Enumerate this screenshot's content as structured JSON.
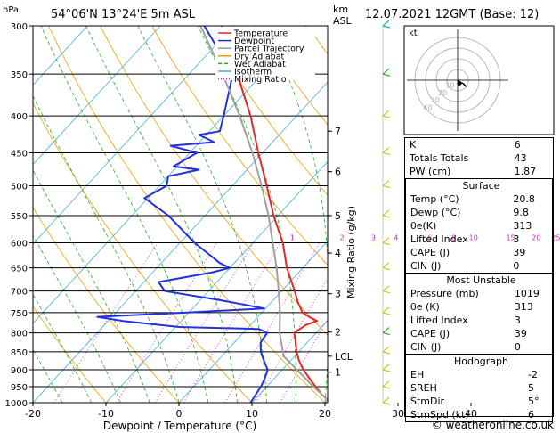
{
  "header": {
    "pressure_unit": "hPa",
    "location": "54°06'N  13°24'E  5m  ASL",
    "height_unit_km": "km",
    "height_unit_asl": "ASL",
    "datetime": "12.07.2021  12GMT  (Base: 12)"
  },
  "legend": [
    {
      "label": "Temperature",
      "color": "#e8262a"
    },
    {
      "label": "Dewpoint",
      "color": "#2230e0"
    },
    {
      "label": "Parcel Trajectory",
      "color": "#a0a0a0"
    },
    {
      "label": "Dry Adiabat",
      "color": "#f0a000"
    },
    {
      "label": "Wet Adiabat",
      "color": "#20b020"
    },
    {
      "label": "Isotherm",
      "color": "#40b0e0"
    },
    {
      "label": "Mixing Ratio",
      "color": "#e020c0"
    }
  ],
  "chart_data": {
    "type": "line",
    "title": "",
    "xlabel": "Dewpoint / Temperature (°C)",
    "ylabel": "",
    "x_ticks": [
      -30,
      -20,
      -10,
      0,
      10,
      20,
      30,
      40
    ],
    "xlim": [
      -35,
      40
    ],
    "pressure_levels": [
      300,
      350,
      400,
      450,
      500,
      550,
      600,
      650,
      700,
      750,
      800,
      850,
      900,
      950,
      1000
    ],
    "ylim_hpa": [
      1000,
      300
    ],
    "y_scale": "log",
    "km_ticks": [
      {
        "km": "7",
        "p": 420
      },
      {
        "km": "6",
        "p": 478
      },
      {
        "km": "5",
        "p": 550
      },
      {
        "km": "4",
        "p": 620
      },
      {
        "km": "3",
        "p": 706
      },
      {
        "km": "2",
        "p": 798
      },
      {
        "km": "LCL",
        "p": 862
      },
      {
        "km": "1",
        "p": 907
      }
    ],
    "mixing_ratio_labels": [
      {
        "label": "1",
        "t600": -4.6
      },
      {
        "label": "2",
        "t600": 2.2
      },
      {
        "label": "3",
        "t600": 6.5
      },
      {
        "label": "4",
        "t600": 9.6
      },
      {
        "label": "6",
        "t600": 14.2
      },
      {
        "label": "8",
        "t600": 17.5
      },
      {
        "label": "10",
        "t600": 20.2
      },
      {
        "label": "15",
        "t600": 25.3
      },
      {
        "label": "20",
        "t600": 28.8
      },
      {
        "label": "25",
        "t600": 31.5
      }
    ],
    "mixing_ratio_axis_label": "Mixing Ratio (g/kg)",
    "series": [
      {
        "name": "Temperature",
        "color": "#e8262a",
        "points": [
          [
            1000,
            20.8
          ],
          [
            975,
            18.6
          ],
          [
            950,
            16.7
          ],
          [
            925,
            14.8
          ],
          [
            900,
            12.9
          ],
          [
            875,
            11.2
          ],
          [
            850,
            9.7
          ],
          [
            825,
            8.4
          ],
          [
            800,
            7.0
          ],
          [
            780,
            7.6
          ],
          [
            770,
            8.6
          ],
          [
            760,
            7.0
          ],
          [
            750,
            5.6
          ],
          [
            725,
            3.6
          ],
          [
            700,
            1.8
          ],
          [
            650,
            -2.2
          ],
          [
            600,
            -5.9
          ],
          [
            550,
            -10.6
          ],
          [
            500,
            -15.3
          ],
          [
            450,
            -20.6
          ],
          [
            400,
            -26.3
          ],
          [
            350,
            -33.4
          ],
          [
            300,
            -41.6
          ]
        ]
      },
      {
        "name": "Dewpoint",
        "color": "#2230e0",
        "points": [
          [
            1000,
            9.8
          ],
          [
            950,
            9.2
          ],
          [
            925,
            8.7
          ],
          [
            900,
            8.0
          ],
          [
            875,
            6.4
          ],
          [
            850,
            4.8
          ],
          [
            825,
            3.6
          ],
          [
            800,
            3.3
          ],
          [
            790,
            1.6
          ],
          [
            785,
            -9.5
          ],
          [
            770,
            -18.0
          ],
          [
            760,
            -22.0
          ],
          [
            750,
            -10.5
          ],
          [
            740,
            -0.2
          ],
          [
            720,
            -7.5
          ],
          [
            700,
            -16.0
          ],
          [
            680,
            -18.0
          ],
          [
            660,
            -12.0
          ],
          [
            650,
            -10.0
          ],
          [
            640,
            -12.0
          ],
          [
            600,
            -18.0
          ],
          [
            550,
            -25.0
          ],
          [
            520,
            -30.5
          ],
          [
            500,
            -29.0
          ],
          [
            485,
            -30.0
          ],
          [
            475,
            -26.6
          ],
          [
            470,
            -30.5
          ],
          [
            450,
            -29.0
          ],
          [
            440,
            -33.5
          ],
          [
            435,
            -28.0
          ],
          [
            425,
            -31.0
          ],
          [
            420,
            -28.6
          ],
          [
            400,
            -30.0
          ],
          [
            350,
            -34.0
          ],
          [
            300,
            -44.0
          ]
        ]
      },
      {
        "name": "Parcel Trajectory",
        "color": "#a0a0a0",
        "points": [
          [
            1000,
            20.8
          ],
          [
            950,
            16.4
          ],
          [
            900,
            12.0
          ],
          [
            862,
            8.5
          ],
          [
            800,
            5.0
          ],
          [
            750,
            2.5
          ],
          [
            700,
            -0.4
          ],
          [
            650,
            -3.6
          ],
          [
            600,
            -7.3
          ],
          [
            550,
            -11.3
          ],
          [
            500,
            -16.0
          ],
          [
            450,
            -21.4
          ],
          [
            400,
            -27.8
          ],
          [
            350,
            -35.4
          ],
          [
            300,
            -44.5
          ]
        ]
      }
    ]
  },
  "hodograph": {
    "label": "kt",
    "ring_labels": [
      "10",
      "20",
      "30",
      "40"
    ],
    "points": [
      [
        0.0,
        0.0
      ],
      [
        1.5,
        -1.0
      ],
      [
        3.5,
        -2.5
      ],
      [
        5.0,
        -3.0
      ],
      [
        8.0,
        -6.0
      ]
    ],
    "storm_motion": [
      1.5,
      -3.0
    ]
  },
  "indices": {
    "rows": [
      {
        "label": "K",
        "value": "6"
      },
      {
        "label": "Totals Totals",
        "value": "43"
      },
      {
        "label": "PW (cm)",
        "value": "1.87"
      }
    ]
  },
  "surface": {
    "title": "Surface",
    "rows": [
      {
        "label": "Temp (°C)",
        "value": "20.8"
      },
      {
        "label": "Dewp (°C)",
        "value": "9.8"
      },
      {
        "label": "θe(K)",
        "value": "313"
      },
      {
        "label": "Lifted Index",
        "value": "3"
      },
      {
        "label": "CAPE (J)",
        "value": "39"
      },
      {
        "label": "CIN (J)",
        "value": "0"
      }
    ]
  },
  "most_unstable": {
    "title": "Most Unstable",
    "rows": [
      {
        "label": "Pressure (mb)",
        "value": "1019"
      },
      {
        "label": "θe (K)",
        "value": "313"
      },
      {
        "label": "Lifted Index",
        "value": "3"
      },
      {
        "label": "CAPE (J)",
        "value": "39"
      },
      {
        "label": "CIN (J)",
        "value": "0"
      }
    ]
  },
  "hodograph_table": {
    "title": "Hodograph",
    "rows": [
      {
        "label": "EH",
        "value": "-2"
      },
      {
        "label": "SREH",
        "value": "5"
      },
      {
        "label": "StmDir",
        "value": "5°"
      },
      {
        "label": "StmSpd (kt)",
        "value": "6"
      }
    ]
  },
  "copyright": "© weatheronline.co.uk"
}
